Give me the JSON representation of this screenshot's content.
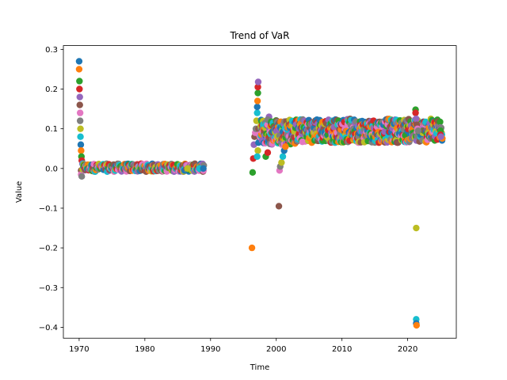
{
  "chart_data": {
    "type": "scatter",
    "title": "Trend of VaR",
    "xlabel": "Time",
    "ylabel": "Value",
    "xlim": [
      1967.6,
      2027.4
    ],
    "ylim": [
      -0.4275,
      0.3095
    ],
    "x_ticks": [
      1970,
      1980,
      1990,
      2000,
      2010,
      2020
    ],
    "x_tick_labels": [
      "1970",
      "1980",
      "1990",
      "2000",
      "2010",
      "2020"
    ],
    "y_ticks": [
      -0.4,
      -0.3,
      -0.2,
      -0.1,
      0.0,
      0.1,
      0.2,
      0.3
    ],
    "y_tick_labels": [
      "−0.4",
      "−0.3",
      "−0.2",
      "−0.1",
      "0.0",
      "0.1",
      "0.2",
      "0.3"
    ],
    "grid": false,
    "legend": "none",
    "colors": [
      "#1f77b4",
      "#ff7f0e",
      "#2ca02c",
      "#d62728",
      "#9467bd",
      "#8c564b",
      "#e377c2",
      "#7f7f7f",
      "#bcbd22",
      "#17becf"
    ],
    "segments": [
      {
        "name": "early_spike",
        "points": [
          [
            1970.0,
            0.27
          ],
          [
            1970.0,
            0.25
          ],
          [
            1970.05,
            0.22
          ],
          [
            1970.05,
            0.2
          ],
          [
            1970.1,
            0.18
          ],
          [
            1970.1,
            0.16
          ],
          [
            1970.15,
            0.14
          ],
          [
            1970.15,
            0.12
          ],
          [
            1970.2,
            0.1
          ],
          [
            1970.2,
            0.08
          ],
          [
            1970.25,
            0.06
          ],
          [
            1970.3,
            0.045
          ],
          [
            1970.35,
            0.03
          ],
          [
            1970.4,
            0.02
          ],
          [
            1970.5,
            0.012
          ],
          [
            1970.3,
            -0.005
          ],
          [
            1970.3,
            -0.015
          ],
          [
            1970.4,
            -0.02
          ]
        ]
      },
      {
        "name": "flat_1970s_1980s",
        "x_range": [
          1970.5,
          1989.0
        ],
        "y_range": [
          -0.008,
          0.012
        ],
        "count": 300
      },
      {
        "name": "end_1988",
        "points": [
          [
            1986.5,
            0.0
          ],
          [
            1988.3,
            0.0
          ],
          [
            1988.9,
            0.0
          ]
        ]
      },
      {
        "name": "spike_1996_1998",
        "points": [
          [
            1996.3,
            -0.2
          ],
          [
            1996.4,
            -0.01
          ],
          [
            1996.5,
            0.025
          ],
          [
            1996.6,
            0.06
          ],
          [
            1996.7,
            0.08
          ],
          [
            1996.8,
            0.09
          ],
          [
            1996.9,
            0.1
          ],
          [
            1997.0,
            0.12
          ],
          [
            1997.1,
            0.14
          ],
          [
            1997.1,
            0.155
          ],
          [
            1997.15,
            0.17
          ],
          [
            1997.2,
            0.19
          ],
          [
            1997.2,
            0.205
          ],
          [
            1997.25,
            0.218
          ],
          [
            1997.3,
            0.1
          ],
          [
            1997.4,
            0.085
          ],
          [
            1997.5,
            0.075
          ],
          [
            1997.2,
            0.045
          ],
          [
            1997.1,
            0.03
          ],
          [
            1997.3,
            0.065
          ],
          [
            1998.0,
            0.1
          ],
          [
            1998.4,
            0.03
          ],
          [
            1998.7,
            0.04
          ],
          [
            1998.9,
            0.13
          ]
        ]
      },
      {
        "name": "cluster_1997_2003",
        "x_range": [
          1997.5,
          2003.0
        ],
        "y_range": [
          0.06,
          0.125
        ],
        "count": 150
      },
      {
        "name": "drop_2000",
        "points": [
          [
            2000.4,
            -0.095
          ],
          [
            2000.5,
            -0.005
          ],
          [
            2000.6,
            0.005
          ],
          [
            2000.8,
            0.015
          ],
          [
            2001.0,
            0.03
          ],
          [
            2001.2,
            0.045
          ],
          [
            2001.4,
            0.055
          ]
        ]
      },
      {
        "name": "plateau_2003_2025",
        "x_range": [
          2003.0,
          2025.3
        ],
        "y_range": [
          0.065,
          0.125
        ],
        "count": 550
      },
      {
        "name": "spike_2021",
        "points": [
          [
            2021.2,
            0.148
          ],
          [
            2021.2,
            0.14
          ],
          [
            2021.3,
            0.125
          ],
          [
            2021.4,
            0.11
          ],
          [
            2021.5,
            0.1
          ],
          [
            2021.6,
            0.095
          ],
          [
            2021.3,
            -0.15
          ],
          [
            2021.3,
            -0.38
          ],
          [
            2021.3,
            -0.39
          ],
          [
            2021.35,
            -0.395
          ]
        ]
      },
      {
        "name": "end_2025",
        "points": [
          [
            2025.0,
            0.095
          ],
          [
            2025.0,
            0.085
          ],
          [
            2025.05,
            0.08
          ]
        ]
      }
    ]
  }
}
